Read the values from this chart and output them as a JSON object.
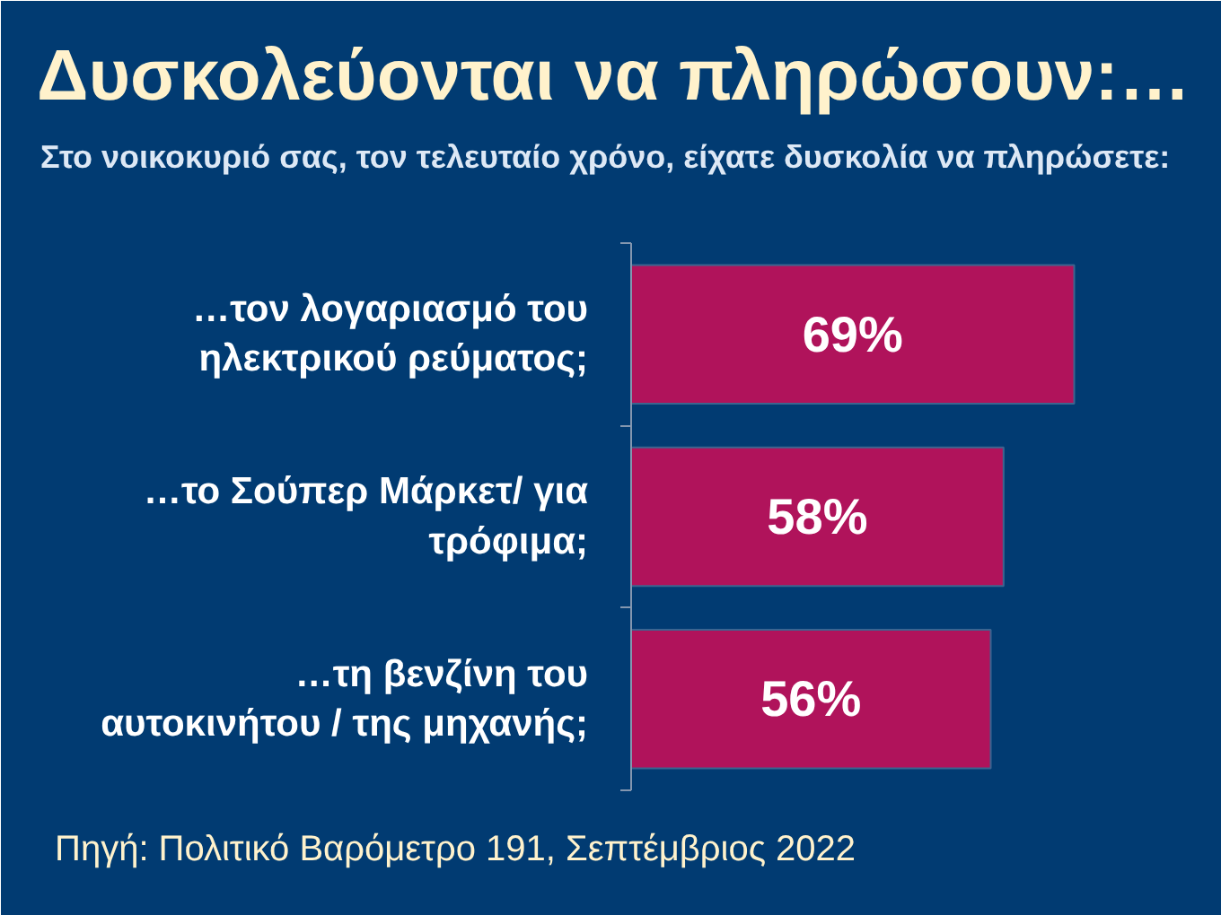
{
  "chart_data": {
    "type": "bar",
    "orientation": "horizontal",
    "title": "Δυσκολεύονται να πληρώσουν:…",
    "subtitle": "Στο νοικοκυριό σας, τον τελευταίο χρόνο, είχατε δυσκολία να πληρώσετε:",
    "categories": [
      "…τον λογαριασμό του ηλεκτρικού ρεύματος;",
      "…το Σούπερ Μάρκετ/ για τρόφιμα;",
      "…τη βενζίνη του αυτοκινήτου / της μηχανής;"
    ],
    "values": [
      69,
      58,
      56
    ],
    "color": "#b0135b",
    "value_labels": [
      "69%",
      "58%",
      "56%"
    ],
    "xlim": [
      0,
      92
    ],
    "tick_labels": "y",
    "annotations": [
      "Πηγή: Πολιτικό Βαρόμετρο 191, Σεπτέμβριος 2022"
    ]
  }
}
